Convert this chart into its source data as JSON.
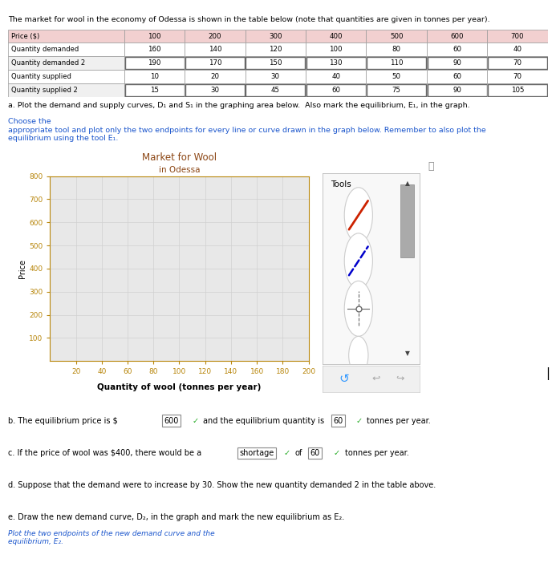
{
  "title_text": "The market for wool in the economy of Odessa is shown in the table below (note that quantities are given in tonnes per year).",
  "row_labels": [
    "Price ($)",
    "Quantity demanded",
    "Quantity demanded 2",
    "Quantity supplied",
    "Quantity supplied 2"
  ],
  "col_headers": [
    100,
    200,
    300,
    400,
    500,
    600,
    700
  ],
  "table_data": [
    [
      160,
      140,
      120,
      100,
      80,
      60,
      40
    ],
    [
      190,
      170,
      150,
      130,
      110,
      90,
      70
    ],
    [
      10,
      20,
      30,
      40,
      50,
      60,
      70
    ],
    [
      15,
      30,
      45,
      60,
      75,
      90,
      105
    ]
  ],
  "question_a_black": "a. Plot the demand and supply curves, D",
  "question_a_subs": [
    "1",
    "1",
    "1"
  ],
  "question_a_mid": " and S",
  "question_a_end_black": " in the graphing area below.  Also mark the equilibrium, E",
  "question_a_blue": "Choose the\nappropriate tool and plot only the two endpoints for every line or curve drawn in the graph below. Remember to also plot the\nequilibrium using the tool E",
  "question_a_full_black": "a. Plot the demand and supply curves, D₁ and S₁ in the graphing area below.  Also mark the equilibrium, E₁, in the graph.",
  "question_a_full_blue": "Choose the\nappropriate tool and plot only the two endpoints for every line or curve drawn in the graph below. Remember to also plot the\nequilibrium using the tool E₁.",
  "chart_title_line1": "Market for Wool",
  "chart_title_line2": "in Odessa",
  "tools_label": "Tools",
  "tools_items": [
    "D₁",
    "S₁",
    "E₁"
  ],
  "xlabel": "Quantity of wool (tonnes per year)",
  "ylabel": "Price",
  "xlim": [
    0,
    200
  ],
  "ylim": [
    0,
    800
  ],
  "xticks": [
    20,
    40,
    60,
    80,
    100,
    120,
    140,
    160,
    180,
    200
  ],
  "yticks": [
    100,
    200,
    300,
    400,
    500,
    600,
    700,
    800
  ],
  "grid_color": "#d0d0d0",
  "tick_color": "#b8860b",
  "plot_bg_color": "#e8e8e8",
  "title_brown": "#8B4513",
  "d1_color": "#cc2200",
  "s1_color": "#0000cc",
  "question_b_pre": "b. The equilibrium price is $",
  "eq_price": "600",
  "question_b_mid": "and the equilibrium quantity is",
  "eq_qty": "60",
  "question_b_post": "tonnes per year.",
  "question_c_pre": "c. If the price of wool was $400, there would be a",
  "shortage_word": "shortage",
  "shortage_qty": "60",
  "question_c_post": "tonnes per year.",
  "question_d": "d. Suppose that the demand were to increase by 30. Show the new quantity demanded 2 in the table above.",
  "question_e_black": "e. Draw the new demand curve, D₂, in the graph and mark the new equilibrium as E₂.",
  "question_e_blue": "Plot the two endpoints of the new demand curve and the\nequilibrium, E₂."
}
